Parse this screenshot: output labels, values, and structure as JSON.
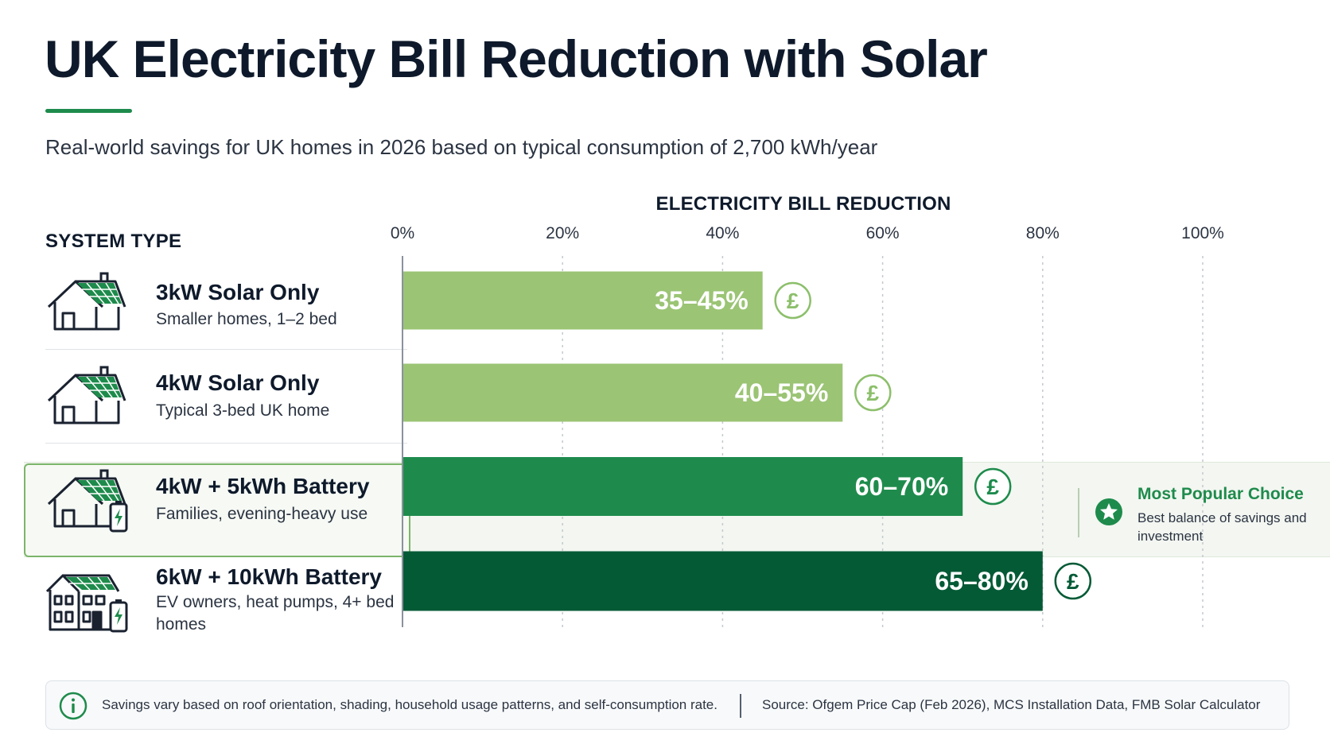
{
  "title": "UK Electricity Bill Reduction with Solar",
  "subtitle": "Real-world savings for UK homes in 2026 based on typical consumption of 2,700 kWh/year",
  "system_header": "SYSTEM TYPE",
  "rows": [
    {
      "name": "3kW Solar Only",
      "description": "Smaller homes, 1–2 bed",
      "icon": "house-solar-icon"
    },
    {
      "name": "4kW Solar Only",
      "description": "Typical 3-bed UK home",
      "icon": "house-solar-icon"
    },
    {
      "name": "4kW + 5kWh Battery",
      "description": "Families, evening-heavy use",
      "icon": "house-solar-battery-icon"
    },
    {
      "name": "6kW + 10kWh Battery",
      "description": "EV owners, heat pumps, 4+ bed homes",
      "icon": "large-house-solar-battery-icon"
    }
  ],
  "popular": {
    "title": "Most Popular Choice",
    "text": "Best balance of savings and investment",
    "icon": "star-badge-icon"
  },
  "footer": {
    "note": "Savings vary based on roof orientation, shading, household usage patterns, and self-consumption rate.",
    "source": "Source: Ofgem Price Cap (Feb 2026), MCS Installation Data, FMB Solar Calculator",
    "icon": "info-icon"
  },
  "colors": {
    "light_green": "#9bc474",
    "mid_green": "#1e8b4c",
    "dark_green": "#055a36",
    "accent": "#1e8b4c"
  },
  "chart_data": {
    "type": "bar",
    "orientation": "horizontal",
    "title": "ELECTRICITY BILL REDUCTION",
    "categories": [
      "3kW Solar Only",
      "4kW Solar Only",
      "4kW + 5kWh Battery",
      "6kW + 10kWh Battery"
    ],
    "ranges": [
      [
        35,
        45
      ],
      [
        40,
        55
      ],
      [
        60,
        70
      ],
      [
        65,
        80
      ]
    ],
    "labels": [
      "35–45%",
      "40–55%",
      "60–70%",
      "65–80%"
    ],
    "bar_colors": [
      "#9bc474",
      "#9bc474",
      "#1e8b4c",
      "#055a36"
    ],
    "badge_symbol": "£",
    "x_ticks": [
      0,
      20,
      40,
      60,
      80,
      100
    ],
    "x_tick_labels": [
      "0%",
      "20%",
      "40%",
      "60%",
      "80%",
      "100%"
    ],
    "xlim": [
      0,
      100
    ],
    "grid": true,
    "highlight_category": "4kW + 5kWh Battery"
  }
}
